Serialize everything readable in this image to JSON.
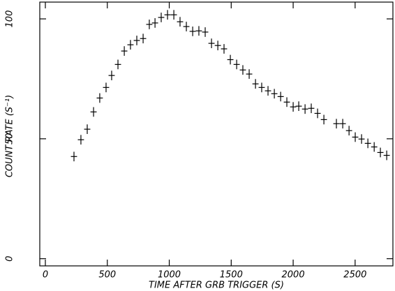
{
  "chart_data": {
    "type": "scatter",
    "x_label": "TIME AFTER GRB TRIGGER (S)",
    "y_label": "COUNT RATE (S⁻¹)",
    "xlim": [
      -45,
      2805
    ],
    "ylim": [
      -3,
      107
    ],
    "xticks": [
      0,
      500,
      1000,
      1500,
      2000,
      2500
    ],
    "yticks": [
      0,
      50,
      100
    ],
    "color": "#000000",
    "xerr": 25,
    "yerr": 2,
    "x": [
      231,
      287,
      338,
      389,
      439,
      490,
      535,
      586,
      637,
      687,
      738,
      789,
      839,
      885,
      935,
      986,
      1037,
      1087,
      1138,
      1189,
      1239,
      1290,
      1341,
      1392,
      1442,
      1493,
      1544,
      1594,
      1645,
      1696,
      1746,
      1797,
      1848,
      1899,
      1949,
      2000,
      2045,
      2096,
      2146,
      2197,
      2248,
      2349,
      2400,
      2451,
      2501,
      2552,
      2603,
      2654,
      2704,
      2755
    ],
    "values": [
      42.6,
      49.6,
      54,
      61.2,
      67,
      71.4,
      76.4,
      81,
      86.6,
      89.2,
      91,
      91.8,
      97.7,
      98.3,
      100.6,
      101.7,
      101.7,
      98.8,
      96.8,
      94.8,
      95,
      94.5,
      89.8,
      88.9,
      87.5,
      83,
      81,
      78.7,
      77,
      72.9,
      71.4,
      70,
      68.8,
      67.6,
      65.3,
      63.3,
      63.6,
      62.4,
      62.7,
      60.6,
      58,
      56.3,
      56.3,
      53.4,
      50.7,
      49.9,
      48.1,
      46.6,
      44.3,
      43.1
    ]
  }
}
